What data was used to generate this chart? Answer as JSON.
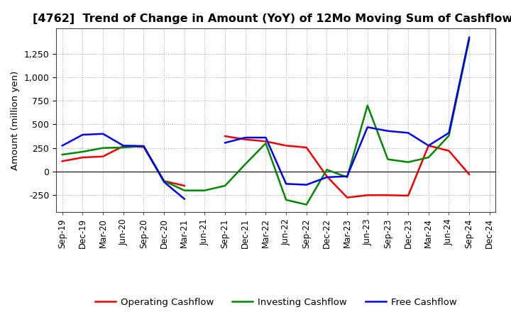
{
  "title": "[4762]  Trend of Change in Amount (YoY) of 12Mo Moving Sum of Cashflows",
  "ylabel": "Amount (million yen)",
  "x_labels": [
    "Sep-19",
    "Dec-19",
    "Mar-20",
    "Jun-20",
    "Sep-20",
    "Dec-20",
    "Mar-21",
    "Jun-21",
    "Sep-21",
    "Dec-21",
    "Mar-22",
    "Jun-22",
    "Sep-22",
    "Dec-22",
    "Mar-23",
    "Jun-23",
    "Sep-23",
    "Dec-23",
    "Mar-24",
    "Jun-24",
    "Sep-24",
    "Dec-24"
  ],
  "operating": [
    110,
    150,
    160,
    270,
    260,
    -100,
    -150,
    null,
    375,
    340,
    320,
    275,
    255,
    -50,
    -275,
    -250,
    -250,
    -255,
    275,
    220,
    -30,
    null
  ],
  "investing": [
    180,
    210,
    250,
    255,
    270,
    -100,
    -200,
    -200,
    -150,
    80,
    300,
    -300,
    -350,
    20,
    -60,
    700,
    130,
    100,
    150,
    380,
    1400,
    null
  ],
  "free": [
    275,
    390,
    400,
    275,
    270,
    -110,
    -290,
    null,
    305,
    360,
    360,
    -130,
    -140,
    -60,
    -50,
    470,
    430,
    410,
    275,
    410,
    1420,
    null
  ],
  "operating_color": "#ee0000",
  "investing_color": "#008800",
  "free_color": "#0000ee",
  "ylim_min": -430,
  "ylim_max": 1520,
  "yticks": [
    -250,
    0,
    250,
    500,
    750,
    1000,
    1250
  ],
  "bg_color": "#ffffff",
  "grid_color": "#999999",
  "title_fontsize": 11.5,
  "axis_label_fontsize": 9.5,
  "tick_fontsize": 9,
  "legend_fontsize": 9.5,
  "linewidth": 1.8
}
